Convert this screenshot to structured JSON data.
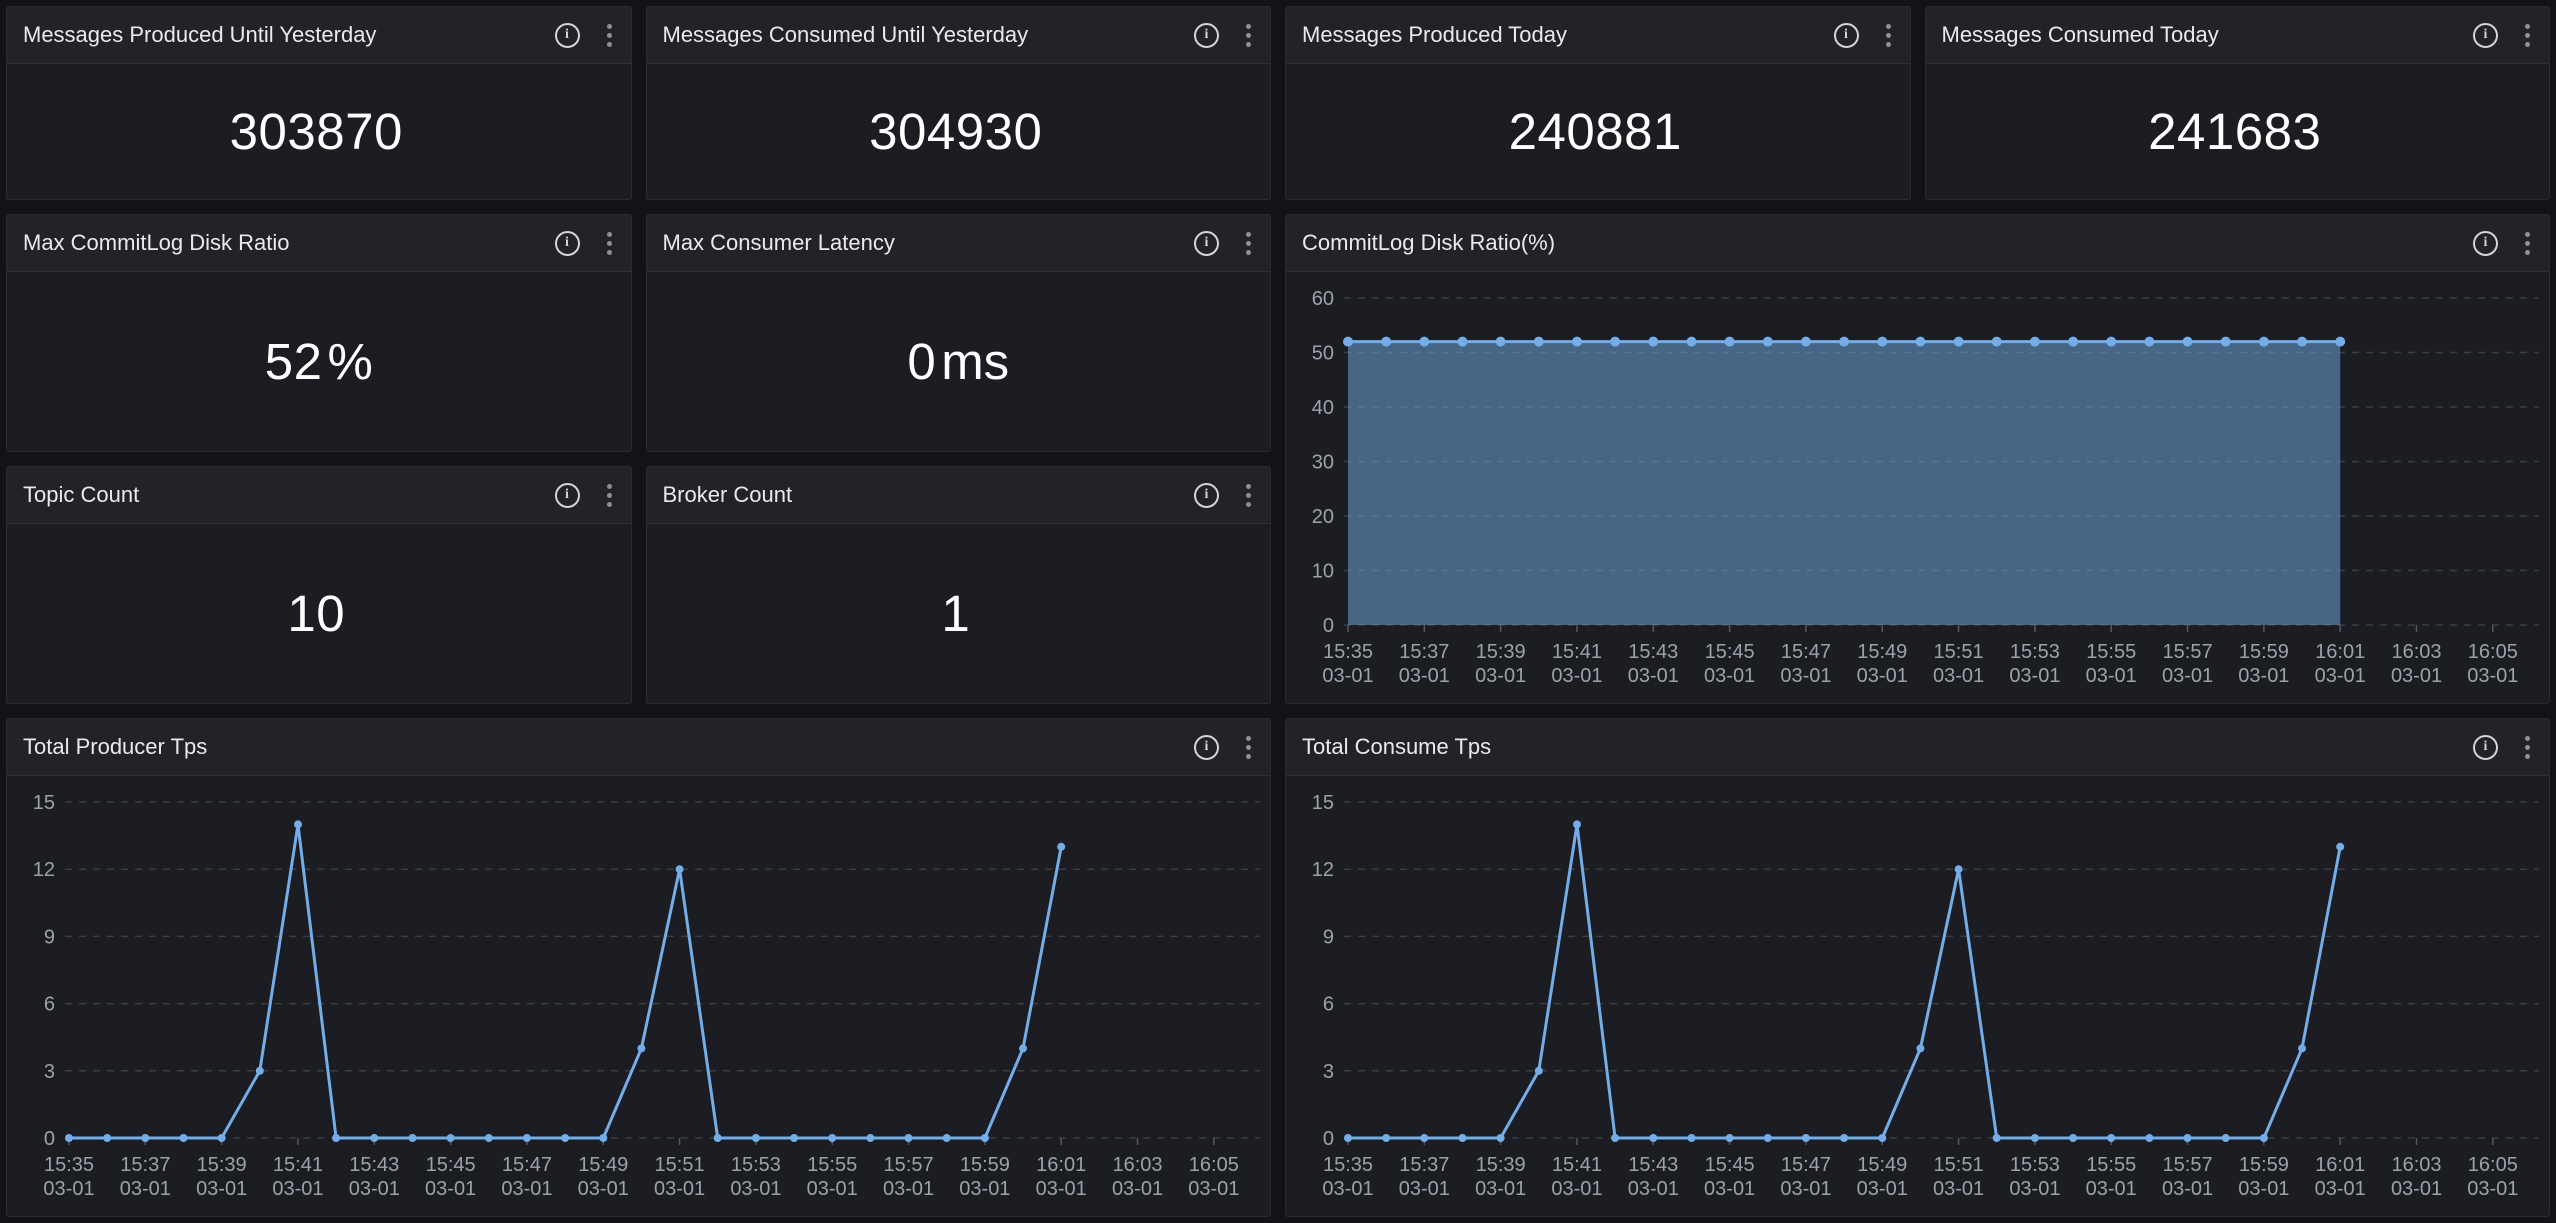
{
  "colors": {
    "page_background": "#111317",
    "panel_background": "#1b1d22",
    "panel_header_background": "#212329",
    "grid_line": "#3b3e44",
    "axis_text": "#9da2a9",
    "axis_tick": "#54575c",
    "chart_blue": "#74ade8",
    "area_fill_blue": "#476484"
  },
  "icons": {
    "info": "info-icon",
    "menu": "kebab-menu-icon"
  },
  "stat_panels": [
    {
      "title": "Messages Produced Until Yesterday",
      "value": "303870",
      "unit": ""
    },
    {
      "title": "Messages Consumed Until Yesterday",
      "value": "304930",
      "unit": ""
    },
    {
      "title": "Messages Produced Today",
      "value": "240881",
      "unit": ""
    },
    {
      "title": "Messages Consumed Today",
      "value": "241683",
      "unit": ""
    },
    {
      "title": "Max CommitLog Disk Ratio",
      "value": "52",
      "unit": "%"
    },
    {
      "title": "Max Consumer Latency",
      "value": "0",
      "unit": "ms"
    },
    {
      "title": "Topic Count",
      "value": "10",
      "unit": ""
    },
    {
      "title": "Broker Count",
      "value": "1",
      "unit": ""
    }
  ],
  "chart_data": [
    {
      "type": "area",
      "title": "CommitLog Disk Ratio(%)",
      "ylabel": "",
      "xlabel": "",
      "ylim": [
        0,
        60
      ],
      "yticks": [
        0,
        10,
        20,
        30,
        40,
        50,
        60
      ],
      "grid": "dashed",
      "legend_position": "none",
      "x_date": "03-01",
      "x_tick_times": [
        "15:35",
        "15:37",
        "15:39",
        "15:41",
        "15:43",
        "15:45",
        "15:47",
        "15:49",
        "15:51",
        "15:53",
        "15:55",
        "15:57",
        "15:59",
        "16:01",
        "16:03",
        "16:05"
      ],
      "x_start_time": "15:35",
      "x_interval_minutes": 1,
      "x_axis_span_minutes": 31,
      "series": [
        {
          "name": "CommitLog Disk Ratio",
          "values": [
            52,
            52,
            52,
            52,
            52,
            52,
            52,
            52,
            52,
            52,
            52,
            52,
            52,
            52,
            52,
            52,
            52,
            52,
            52,
            52,
            52,
            52,
            52,
            52,
            52,
            52,
            52
          ]
        }
      ],
      "line_color": "#74ade8",
      "fill_opacity": 0.5,
      "marker_radius": 5
    },
    {
      "type": "line",
      "title": "Total Producer Tps",
      "ylabel": "",
      "xlabel": "",
      "ylim": [
        0,
        15
      ],
      "yticks": [
        0,
        3,
        6,
        9,
        12,
        15
      ],
      "grid": "dashed",
      "legend_position": "none",
      "x_date": "03-01",
      "x_tick_times": [
        "15:35",
        "15:37",
        "15:39",
        "15:41",
        "15:43",
        "15:45",
        "15:47",
        "15:49",
        "15:51",
        "15:53",
        "15:55",
        "15:57",
        "15:59",
        "16:01",
        "16:03",
        "16:05"
      ],
      "x_start_time": "15:35",
      "x_interval_minutes": 1,
      "x_axis_span_minutes": 31,
      "series": [
        {
          "name": "Total Producer Tps",
          "values": [
            0,
            0,
            0,
            0,
            0,
            3,
            14,
            0,
            0,
            0,
            0,
            0,
            0,
            0,
            0,
            4,
            12,
            0,
            0,
            0,
            0,
            0,
            0,
            0,
            0,
            4,
            13
          ]
        }
      ],
      "line_color": "#74ade8",
      "fill_opacity": 0,
      "marker_radius": 4
    },
    {
      "type": "line",
      "title": "Total Consume Tps",
      "ylabel": "",
      "xlabel": "",
      "ylim": [
        0,
        15
      ],
      "yticks": [
        0,
        3,
        6,
        9,
        12,
        15
      ],
      "grid": "dashed",
      "legend_position": "none",
      "x_date": "03-01",
      "x_tick_times": [
        "15:35",
        "15:37",
        "15:39",
        "15:41",
        "15:43",
        "15:45",
        "15:47",
        "15:49",
        "15:51",
        "15:53",
        "15:55",
        "15:57",
        "15:59",
        "16:01",
        "16:03",
        "16:05"
      ],
      "x_start_time": "15:35",
      "x_interval_minutes": 1,
      "x_axis_span_minutes": 31,
      "series": [
        {
          "name": "Total Consume Tps",
          "values": [
            0,
            0,
            0,
            0,
            0,
            3,
            14,
            0,
            0,
            0,
            0,
            0,
            0,
            0,
            0,
            4,
            12,
            0,
            0,
            0,
            0,
            0,
            0,
            0,
            0,
            4,
            13
          ]
        }
      ],
      "line_color": "#74ade8",
      "fill_opacity": 0,
      "marker_radius": 4
    }
  ]
}
